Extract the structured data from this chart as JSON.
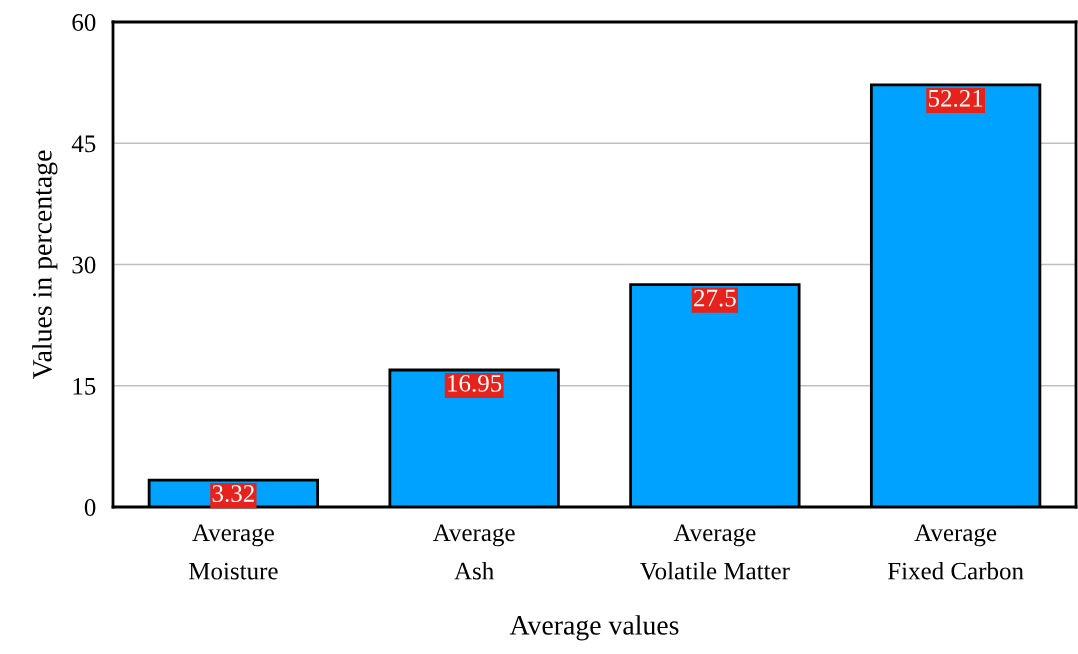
{
  "chart_data": {
    "type": "bar",
    "categories": [
      "Average\nMoisture",
      "Average\nAsh",
      "Average\nVolatile Matter",
      "Average\nFixed Carbon"
    ],
    "values": [
      3.32,
      16.95,
      27.5,
      52.21
    ],
    "color": "#00a2ff",
    "xlabel": "Average values",
    "ylabel": "Values in percentage",
    "ylim": [
      0,
      60
    ],
    "yticks": [
      0,
      15,
      30,
      45,
      60
    ],
    "grid": "y",
    "data_labels": true
  }
}
